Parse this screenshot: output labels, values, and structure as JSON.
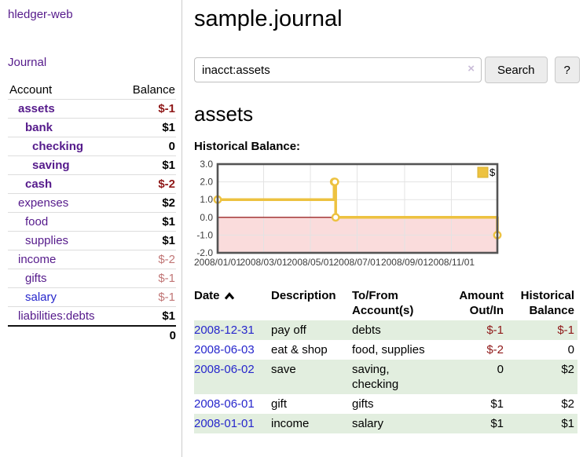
{
  "sidebar": {
    "brand": "hledger-web",
    "journal_label": "Journal",
    "accounts_table": {
      "headers": [
        "Account",
        "Balance"
      ],
      "rows": [
        {
          "label": "assets",
          "balance": "$-1",
          "indent": 1,
          "in_view": true,
          "bal_class": "neg-strong"
        },
        {
          "label": "bank",
          "balance": "$1",
          "indent": 2,
          "in_view": true,
          "bal_class": "pos"
        },
        {
          "label": "checking",
          "balance": "0",
          "indent": 3,
          "in_view": true,
          "bal_class": "pos"
        },
        {
          "label": "saving",
          "balance": "$1",
          "indent": 3,
          "in_view": true,
          "bal_class": "pos"
        },
        {
          "label": "cash",
          "balance": "$-2",
          "indent": 2,
          "in_view": true,
          "bal_class": "neg-strong"
        },
        {
          "label": "expenses",
          "balance": "$2",
          "indent": 1,
          "in_view": false,
          "bal_class": "pos"
        },
        {
          "label": "food",
          "balance": "$1",
          "indent": 2,
          "in_view": false,
          "bal_class": "pos"
        },
        {
          "label": "supplies",
          "balance": "$1",
          "indent": 2,
          "in_view": false,
          "bal_class": "pos"
        },
        {
          "label": "income",
          "balance": "$-2",
          "indent": 1,
          "in_view": false,
          "bal_class": "neg-muted"
        },
        {
          "label": "gifts",
          "balance": "$-1",
          "indent": 2,
          "in_view": false,
          "bal_class": "neg-muted"
        },
        {
          "label": "salary",
          "balance": "$-1",
          "indent": 2,
          "in_view": false,
          "bal_class": "neg-muted",
          "blue": true
        },
        {
          "label": "liabilities:debts",
          "balance": "$1",
          "indent": 1,
          "in_view": false,
          "bal_class": "pos"
        }
      ],
      "total": "0"
    }
  },
  "header": {
    "title": "sample.journal"
  },
  "search": {
    "value": "inacct:assets",
    "clear_icon": "×",
    "button_label": "Search",
    "help_label": "?"
  },
  "main": {
    "account_heading": "assets",
    "chart_label": "Historical Balance:"
  },
  "chart_data": {
    "type": "line",
    "title": "Historical Balance:",
    "series": [
      {
        "name": "$",
        "color": "#edc240",
        "step": true,
        "points": [
          [
            "2008-01-01",
            1
          ],
          [
            "2008-06-01",
            2
          ],
          [
            "2008-06-02",
            2
          ],
          [
            "2008-06-03",
            0
          ],
          [
            "2008-12-31",
            -1
          ]
        ]
      }
    ],
    "x_ticks": [
      "2008/01/01",
      "2008/03/01",
      "2008/05/01",
      "2008/07/01",
      "2008/09/01",
      "2008/11/01"
    ],
    "y_ticks": [
      3.0,
      2.0,
      1.0,
      0.0,
      -1.0,
      -2.0
    ],
    "ylim": [
      -2,
      3
    ],
    "xlim_days": [
      0,
      365
    ],
    "grid": true,
    "border_color": "#545454",
    "tick_color": "#e3e3e3",
    "negative_region_fill": "#fadcdc",
    "zero_line_color": "#8b0000",
    "legend": {
      "label": "$",
      "position": "top-right"
    }
  },
  "register_table": {
    "headers": {
      "date": "Date",
      "description": "Description",
      "account": "To/From Account(s)",
      "amount": "Amount Out/In",
      "balance": "Historical Balance"
    },
    "rows": [
      {
        "date": "2008-12-31",
        "description": "pay off",
        "accounts": "debts",
        "amount": "$-1",
        "balance": "$-1"
      },
      {
        "date": "2008-06-03",
        "description": "eat & shop",
        "accounts": "food, supplies",
        "amount": "$-2",
        "balance": "0"
      },
      {
        "date": "2008-06-02",
        "description": "save",
        "accounts": "saving,\nchecking",
        "amount": "0",
        "balance": "$2"
      },
      {
        "date": "2008-06-01",
        "description": "gift",
        "accounts": "gifts",
        "amount": "$1",
        "balance": "$2"
      },
      {
        "date": "2008-01-01",
        "description": "income",
        "accounts": "salary",
        "amount": "$1",
        "balance": "$1"
      }
    ]
  }
}
